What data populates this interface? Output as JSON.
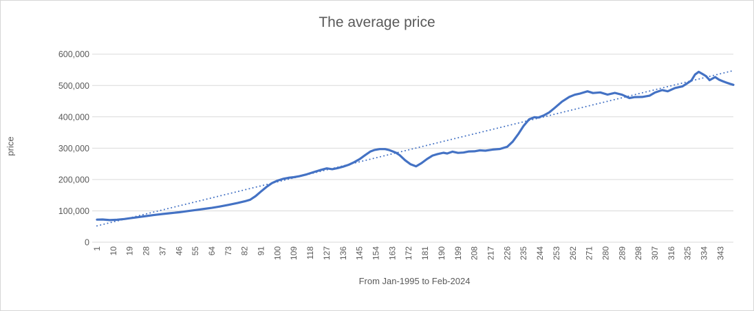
{
  "colors": {
    "series": "#4472C4",
    "trendline": "#4472C4",
    "gridline": "#D9D9D9",
    "axis_text": "#595959",
    "title_text": "#595959",
    "background": "#FFFFFF",
    "border": "#D6D6D6"
  },
  "chart_data": {
    "type": "line",
    "title": "The average price",
    "xlabel": "From Jan-1995 to Feb-2024",
    "ylabel": "price",
    "legend": "none",
    "grid": "horizontal",
    "x_range": [
      1,
      350
    ],
    "ylim": [
      0,
      600000
    ],
    "y_ticks": [
      0,
      100000,
      200000,
      300000,
      400000,
      500000,
      600000
    ],
    "y_tick_labels": [
      "0",
      "100,000",
      "200,000",
      "300,000",
      "400,000",
      "500,000",
      "600,000"
    ],
    "x_tick_labels": [
      1,
      10,
      19,
      28,
      37,
      46,
      55,
      64,
      73,
      82,
      91,
      100,
      109,
      118,
      127,
      136,
      145,
      154,
      163,
      172,
      181,
      190,
      199,
      208,
      217,
      226,
      235,
      244,
      253,
      262,
      271,
      280,
      289,
      298,
      307,
      316,
      325,
      334,
      343
    ],
    "series": [
      {
        "name": "average price",
        "style": "solid",
        "points": [
          [
            1,
            72000
          ],
          [
            4,
            72500
          ],
          [
            8,
            70500
          ],
          [
            12,
            71500
          ],
          [
            16,
            74000
          ],
          [
            19,
            76500
          ],
          [
            23,
            79500
          ],
          [
            28,
            83500
          ],
          [
            32,
            86500
          ],
          [
            37,
            90000
          ],
          [
            41,
            92500
          ],
          [
            46,
            95500
          ],
          [
            50,
            98500
          ],
          [
            55,
            102500
          ],
          [
            60,
            106500
          ],
          [
            64,
            109500
          ],
          [
            68,
            113500
          ],
          [
            73,
            119000
          ],
          [
            78,
            125000
          ],
          [
            82,
            130500
          ],
          [
            85,
            135500
          ],
          [
            88,
            147000
          ],
          [
            91,
            162000
          ],
          [
            94,
            176500
          ],
          [
            97,
            188500
          ],
          [
            100,
            196500
          ],
          [
            103,
            202000
          ],
          [
            106,
            205500
          ],
          [
            109,
            207500
          ],
          [
            112,
            210500
          ],
          [
            116,
            216500
          ],
          [
            120,
            224000
          ],
          [
            124,
            231000
          ],
          [
            127,
            235500
          ],
          [
            130,
            233000
          ],
          [
            133,
            236500
          ],
          [
            136,
            241000
          ],
          [
            139,
            247000
          ],
          [
            142,
            255000
          ],
          [
            145,
            265000
          ],
          [
            148,
            277500
          ],
          [
            151,
            289500
          ],
          [
            153,
            294000
          ],
          [
            156,
            297000
          ],
          [
            159,
            297000
          ],
          [
            161,
            294500
          ],
          [
            163,
            290000
          ],
          [
            165,
            285500
          ],
          [
            167,
            277500
          ],
          [
            170,
            261500
          ],
          [
            173,
            248500
          ],
          [
            176,
            242000
          ],
          [
            179,
            252500
          ],
          [
            182,
            265500
          ],
          [
            185,
            276500
          ],
          [
            188,
            281500
          ],
          [
            191,
            285500
          ],
          [
            193,
            283000
          ],
          [
            196,
            289000
          ],
          [
            199,
            285000
          ],
          [
            202,
            286000
          ],
          [
            205,
            289500
          ],
          [
            208,
            290000
          ],
          [
            211,
            293000
          ],
          [
            214,
            292000
          ],
          [
            218,
            295500
          ],
          [
            222,
            297500
          ],
          [
            226,
            304500
          ],
          [
            229,
            321000
          ],
          [
            232,
            344500
          ],
          [
            235,
            371500
          ],
          [
            238,
            392000
          ],
          [
            241,
            399000
          ],
          [
            243,
            397500
          ],
          [
            246,
            404500
          ],
          [
            249,
            414000
          ],
          [
            252,
            428500
          ],
          [
            256,
            448500
          ],
          [
            260,
            463500
          ],
          [
            263,
            470500
          ],
          [
            266,
            474500
          ],
          [
            270,
            481500
          ],
          [
            273,
            476000
          ],
          [
            277,
            478000
          ],
          [
            281,
            471000
          ],
          [
            285,
            476500
          ],
          [
            289,
            470500
          ],
          [
            293,
            460000
          ],
          [
            296,
            463000
          ],
          [
            300,
            463500
          ],
          [
            304,
            467500
          ],
          [
            307,
            477500
          ],
          [
            311,
            485500
          ],
          [
            314,
            481500
          ],
          [
            318,
            492000
          ],
          [
            322,
            497000
          ],
          [
            325,
            508000
          ],
          [
            327,
            516000
          ],
          [
            329,
            535000
          ],
          [
            331,
            543500
          ],
          [
            333,
            537000
          ],
          [
            335,
            530000
          ],
          [
            337,
            517000
          ],
          [
            340,
            527000
          ],
          [
            342,
            519000
          ],
          [
            344,
            514000
          ],
          [
            346,
            509500
          ],
          [
            348,
            505500
          ],
          [
            350,
            502000
          ]
        ]
      },
      {
        "name": "linear trendline",
        "style": "dotted",
        "points": [
          [
            1,
            52000
          ],
          [
            350,
            547500
          ]
        ]
      }
    ]
  }
}
